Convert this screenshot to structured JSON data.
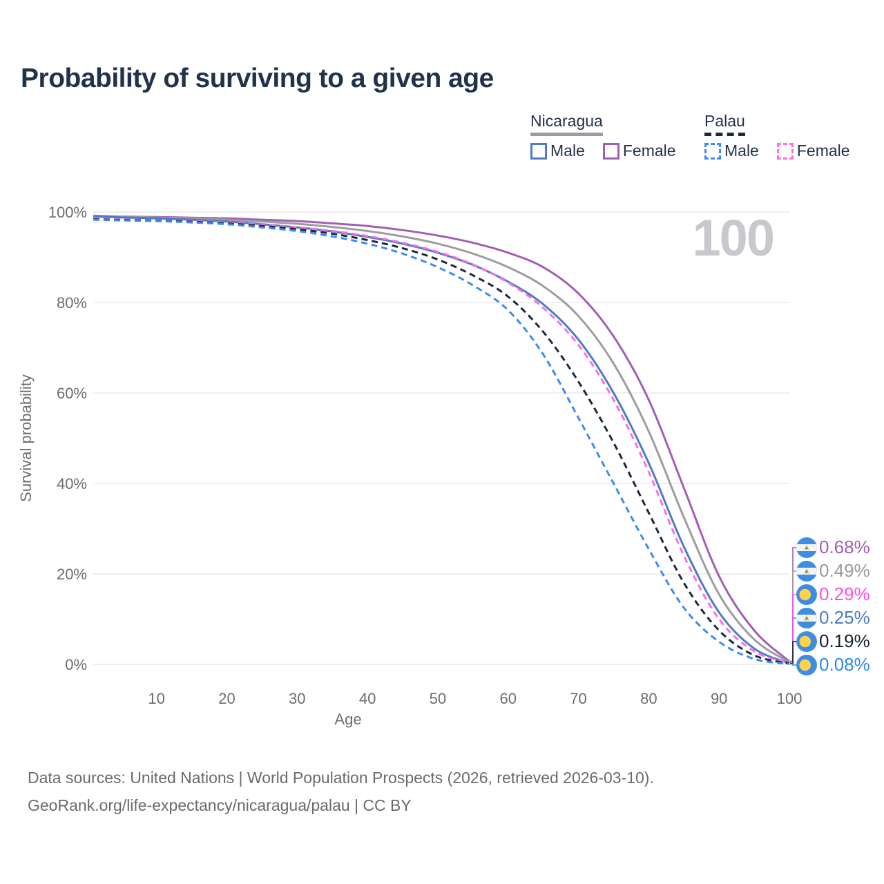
{
  "title": "Probability of surviving to a given age",
  "watermark": "100",
  "legend": {
    "groups": [
      {
        "country": "Nicaragua",
        "line_style": "solid",
        "underline_color": "#9b9ba0",
        "items": [
          {
            "label": "Male",
            "color": "#4f7ac7"
          },
          {
            "label": "Female",
            "color": "#a25eb5"
          }
        ]
      },
      {
        "country": "Palau",
        "line_style": "dashed",
        "underline_color": "#1b2a3a",
        "items": [
          {
            "label": "Male",
            "color": "#3d8af7"
          },
          {
            "label": "Female",
            "color": "#fb6fe2"
          }
        ]
      }
    ]
  },
  "footer": {
    "line1": "Data sources: United Nations | World Population Prospects (2026, retrieved 2026-03-10).",
    "line2": "GeoRank.org/life-expectancy/nicaragua/palau | CC BY"
  },
  "chart_data": {
    "type": "line",
    "title": "Probability of surviving to a given age",
    "xlabel": "Age",
    "ylabel": "Survival probability",
    "xlim": [
      1,
      100
    ],
    "ylim": [
      0,
      100
    ],
    "grid": true,
    "legend_position": "top-right",
    "x_ticks": [
      10,
      20,
      30,
      40,
      50,
      60,
      70,
      80,
      90,
      100
    ],
    "y_ticks": [
      "0%",
      "20%",
      "40%",
      "60%",
      "80%",
      "100%"
    ],
    "x": [
      1,
      5,
      10,
      15,
      20,
      25,
      30,
      35,
      40,
      45,
      50,
      55,
      60,
      65,
      70,
      75,
      80,
      85,
      90,
      95,
      100
    ],
    "series": [
      {
        "name": "Nicaragua Female",
        "country": "Nicaragua",
        "sex": "Female",
        "color": "#a25eb5",
        "dash": "solid",
        "flag": "nicaragua",
        "end_label": "0.68%",
        "end_label_color": "#a25eb5",
        "label_row": 0,
        "values": [
          99.2,
          99.0,
          98.9,
          98.75,
          98.6,
          98.3,
          98.0,
          97.5,
          96.9,
          96.0,
          94.8,
          93.2,
          91.0,
          87.8,
          82.0,
          72.5,
          58.5,
          39.0,
          19.5,
          7.5,
          0.68
        ]
      },
      {
        "name": "Nicaragua Both sexes",
        "country": "Nicaragua",
        "sex": "Both",
        "color": "#9d9d9d",
        "dash": "solid",
        "flag": "nicaragua",
        "end_label": "0.49%",
        "end_label_color": "#9b9b9b",
        "label_row": 1,
        "values": [
          99.1,
          98.95,
          98.8,
          98.6,
          98.3,
          97.9,
          97.4,
          96.7,
          95.8,
          94.6,
          93.0,
          90.8,
          87.8,
          83.6,
          77.0,
          66.5,
          51.5,
          32.5,
          15.5,
          5.5,
          0.49
        ]
      },
      {
        "name": "Nicaragua Male",
        "country": "Nicaragua",
        "sex": "Male",
        "color": "#4f7ac7",
        "dash": "solid",
        "flag": "nicaragua",
        "end_label": "0.25%",
        "end_label_color": "#4f7ac7",
        "label_row": 3,
        "values": [
          99.0,
          98.8,
          98.6,
          98.3,
          97.9,
          97.3,
          96.6,
          95.7,
          94.5,
          93.0,
          91.0,
          88.3,
          84.6,
          79.6,
          71.8,
          60.0,
          44.5,
          26.0,
          11.5,
          3.5,
          0.25
        ]
      },
      {
        "name": "Palau Female",
        "country": "Palau",
        "sex": "Female",
        "color": "#fb6fe2",
        "dash": "dashed",
        "flag": "palau",
        "end_label": "0.29%",
        "end_label_color": "#fb4fe3",
        "label_row": 2,
        "values": [
          98.5,
          98.35,
          98.2,
          98.0,
          97.7,
          97.2,
          96.6,
          95.8,
          94.7,
          93.2,
          91.2,
          88.4,
          84.4,
          78.8,
          70.6,
          58.5,
          42.5,
          24.0,
          10.0,
          2.9,
          0.29
        ]
      },
      {
        "name": "Palau Both sexes",
        "country": "Palau",
        "sex": "Both",
        "color": "#1b2a3a",
        "dash": "dashed",
        "flag": "palau",
        "end_label": "0.19%",
        "end_label_color": "#16212e",
        "label_row": 4,
        "values": [
          98.4,
          98.25,
          98.1,
          97.85,
          97.5,
          96.9,
          96.2,
          95.2,
          93.8,
          92.0,
          89.5,
          86.0,
          81.3,
          73.5,
          62.5,
          49.0,
          33.5,
          18.0,
          7.5,
          2.0,
          0.19
        ]
      },
      {
        "name": "Palau Male",
        "country": "Palau",
        "sex": "Male",
        "color": "#3d8af7",
        "dash": "dashed",
        "flag": "palau",
        "end_label": "0.08%",
        "end_label_color": "#2e8af0",
        "label_row": 5,
        "values": [
          98.3,
          98.15,
          98.0,
          97.7,
          97.3,
          96.6,
          95.8,
          94.6,
          93.0,
          90.8,
          87.8,
          83.8,
          78.3,
          68.5,
          54.5,
          40.0,
          25.5,
          12.5,
          5.0,
          1.2,
          0.08
        ]
      }
    ],
    "flag_colors": {
      "flag_blue": "#3f8de2",
      "flag_white": "#f4f4f4",
      "flag_yellow": "#ffd24d"
    },
    "style": {
      "grid_color": "#e9e9ec",
      "tick_color": "#6d6d72",
      "watermark_color": "#c8c8cd"
    }
  }
}
